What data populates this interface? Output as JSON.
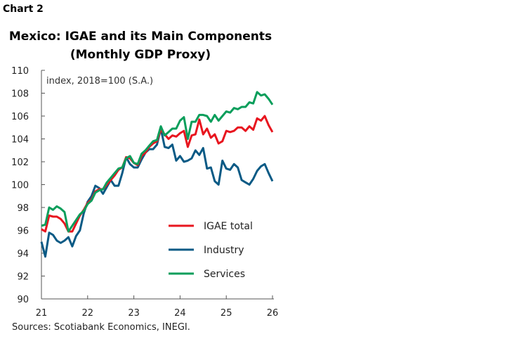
{
  "label": "Chart 2",
  "chart_data": {
    "type": "line",
    "title": "Mexico: IGAE and its Main Components",
    "subtitle": "(Monthly GDP Proxy)",
    "annotation": "index, 2018=100 (S.A.)",
    "source": "Sources: Scotiabank Economics, INEGI.",
    "ylim": [
      90,
      110
    ],
    "yticks": [
      "90",
      "92",
      "94",
      "96",
      "98",
      "100",
      "102",
      "104",
      "106",
      "108",
      "110"
    ],
    "xticks": [
      "21",
      "22",
      "23",
      "24",
      "25",
      "26"
    ],
    "xlim": [
      "2021-01",
      "2026-01"
    ],
    "frequency": "monthly",
    "grid": false,
    "legend_position": "bottom-right",
    "series": [
      {
        "name": "IGAE total",
        "color": "#e8161f",
        "values": [
          96.1,
          95.9,
          97.3,
          97.2,
          97.2,
          97.0,
          96.6,
          95.9,
          95.9,
          96.6,
          97.3,
          97.8,
          98.4,
          98.7,
          99.4,
          99.6,
          99.6,
          100.0,
          100.4,
          100.8,
          101.3,
          101.5,
          102.4,
          102.3,
          101.9,
          101.7,
          102.5,
          102.8,
          103.3,
          103.6,
          103.8,
          104.8,
          104.4,
          104.0,
          104.3,
          104.2,
          104.5,
          104.7,
          103.3,
          104.3,
          104.4,
          105.7,
          104.4,
          104.9,
          104.1,
          104.4,
          103.6,
          103.8,
          104.7,
          104.6,
          104.7,
          105.0,
          105.0,
          104.7,
          105.1,
          104.8,
          105.8,
          105.6,
          106.0,
          105.2,
          104.6
        ]
      },
      {
        "name": "Industry",
        "color": "#0a5a85",
        "values": [
          95.0,
          93.7,
          95.8,
          95.6,
          95.1,
          94.9,
          95.1,
          95.4,
          94.6,
          95.5,
          96.0,
          97.5,
          98.5,
          99.0,
          99.9,
          99.7,
          99.2,
          99.8,
          100.4,
          99.9,
          99.9,
          101.0,
          102.4,
          101.8,
          101.5,
          101.5,
          102.2,
          102.8,
          103.1,
          103.1,
          103.5,
          104.9,
          103.3,
          103.2,
          103.5,
          102.1,
          102.5,
          102.0,
          102.1,
          102.3,
          103.0,
          102.6,
          103.2,
          101.4,
          101.5,
          100.3,
          100.0,
          102.1,
          101.4,
          101.3,
          101.8,
          101.5,
          100.4,
          100.2,
          100.0,
          100.5,
          101.2,
          101.6,
          101.8,
          101.0,
          100.3
        ]
      },
      {
        "name": "Services",
        "color": "#0a9e5b",
        "values": [
          96.4,
          96.5,
          98.0,
          97.8,
          98.1,
          97.9,
          97.6,
          95.9,
          96.4,
          96.9,
          97.4,
          97.7,
          98.3,
          98.6,
          99.3,
          99.5,
          99.6,
          100.2,
          100.6,
          101.0,
          101.4,
          101.5,
          102.3,
          102.5,
          101.9,
          101.8,
          102.7,
          103.0,
          103.4,
          103.8,
          103.9,
          105.1,
          104.3,
          104.6,
          104.9,
          104.9,
          105.6,
          105.9,
          104.0,
          105.5,
          105.5,
          106.1,
          106.1,
          106.0,
          105.5,
          106.1,
          105.6,
          106.0,
          106.4,
          106.3,
          106.7,
          106.6,
          106.8,
          106.8,
          107.2,
          107.1,
          108.1,
          107.8,
          107.9,
          107.5,
          107.0
        ]
      }
    ]
  }
}
